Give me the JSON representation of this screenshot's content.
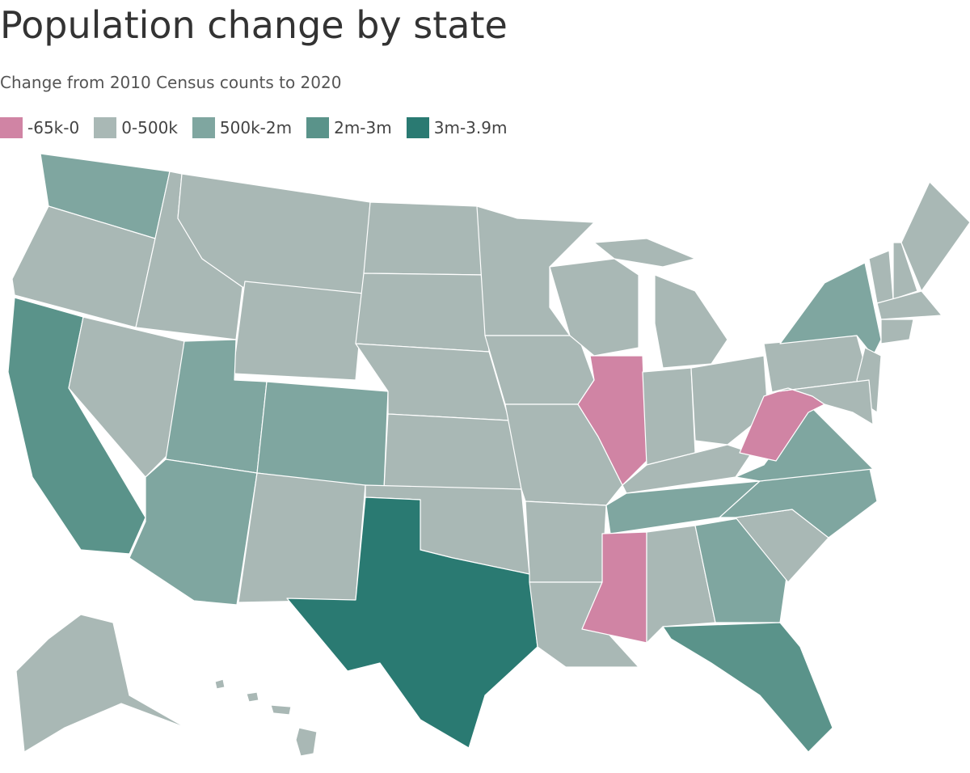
{
  "title": "Population change by state",
  "subtitle": "Change from 2010 Census counts to 2020",
  "legend": [
    {
      "label": "-65k-0",
      "color": "#d084a4"
    },
    {
      "label": "0-500k",
      "color": "#a9b8b5"
    },
    {
      "label": "500k-2m",
      "color": "#7fa6a0"
    },
    {
      "label": "2m-3m",
      "color": "#5a938a"
    },
    {
      "label": "3m-3.9m",
      "color": "#2a7a72"
    }
  ]
}
